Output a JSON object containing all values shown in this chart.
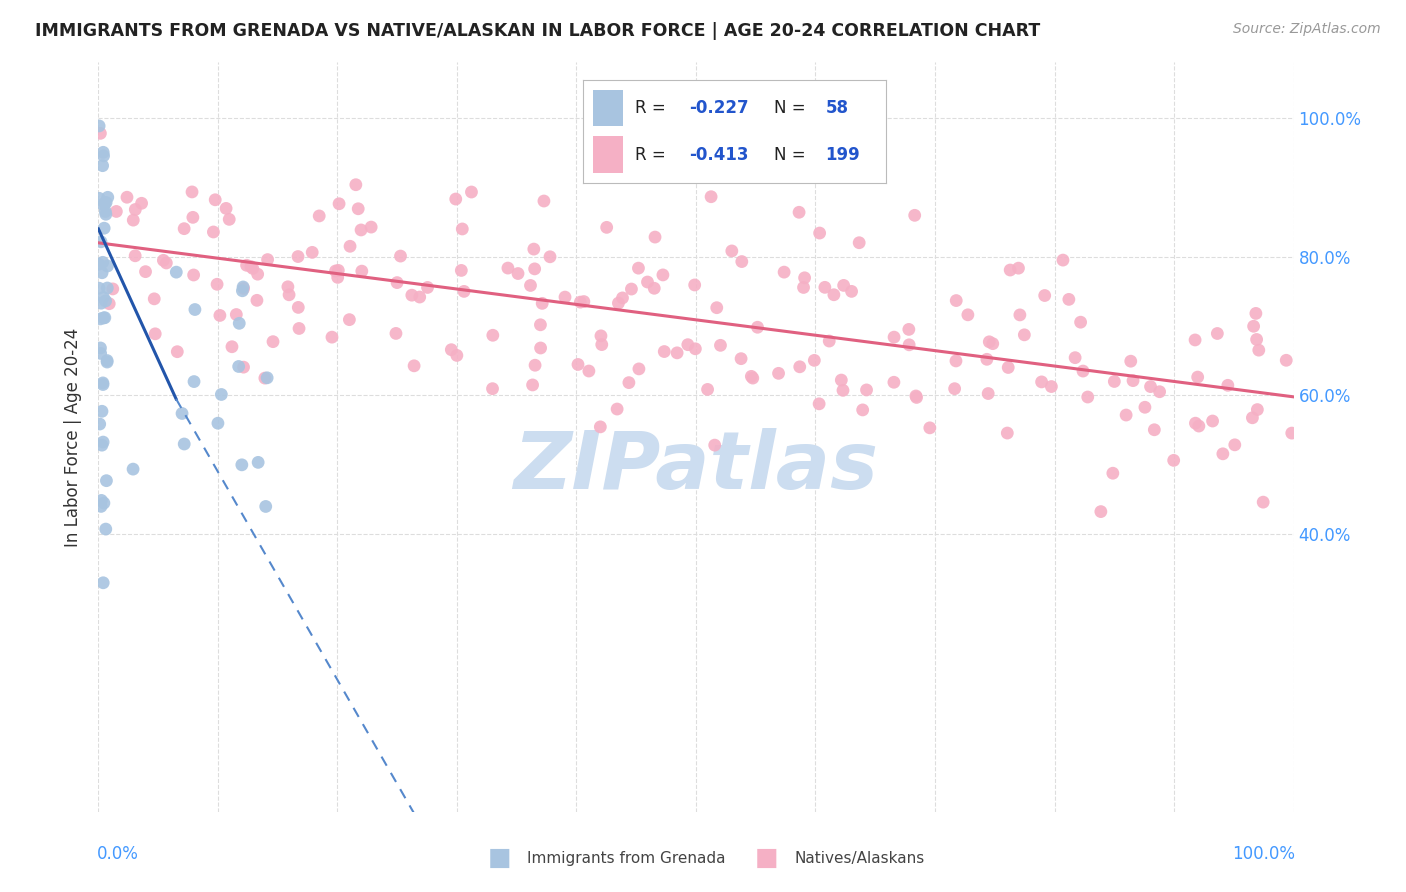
{
  "title": "IMMIGRANTS FROM GRENADA VS NATIVE/ALASKAN IN LABOR FORCE | AGE 20-24 CORRELATION CHART",
  "source": "Source: ZipAtlas.com",
  "ylabel": "In Labor Force | Age 20-24",
  "xlim": [
    0.0,
    1.0
  ],
  "ylim": [
    0.0,
    1.08
  ],
  "blue_R": -0.227,
  "blue_N": 58,
  "pink_R": -0.413,
  "pink_N": 199,
  "blue_color": "#a8c4e0",
  "blue_line_color": "#2255aa",
  "blue_dash_color": "#5588cc",
  "pink_color": "#f5b0c5",
  "pink_line_color": "#e06080",
  "watermark": "ZIPatlas",
  "watermark_color": "#ccddf0",
  "background_color": "#ffffff",
  "grid_color": "#dddddd",
  "right_axis_color": "#4499ff",
  "ytick_positions": [
    0.0,
    0.4,
    0.6,
    0.8,
    1.0
  ],
  "ytick_labels_right": [
    "",
    "40.0%",
    "60.0%",
    "80.0%",
    "100.0%"
  ],
  "legend_box_color": "#f0f4ff",
  "legend_border_color": "#cccccc"
}
